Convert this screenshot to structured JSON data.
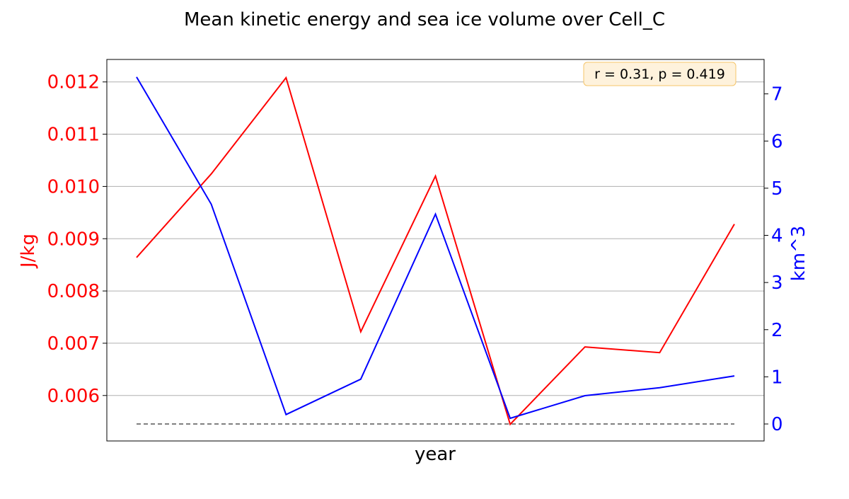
{
  "chart_data": {
    "type": "line",
    "title": "Mean kinetic energy and sea ice volume over Cell_C",
    "xlabel": "year",
    "ylabel_left": "J/kg",
    "ylabel_right": "km^3",
    "x": [
      0,
      1,
      2,
      3,
      4,
      5,
      6,
      7,
      8
    ],
    "ylim_left": [
      0.00513,
      0.01243
    ],
    "ylim_right": [
      -0.36,
      7.73
    ],
    "yticks_left": [
      "0.006",
      "0.007",
      "0.008",
      "0.009",
      "0.010",
      "0.011",
      "0.012"
    ],
    "yticks_right": [
      "0",
      "1",
      "2",
      "3",
      "4",
      "5",
      "6",
      "7"
    ],
    "series": [
      {
        "name": "",
        "axis": "left",
        "color": "#ff0000",
        "values": [
          0.00864,
          0.01024,
          0.01208,
          0.00722,
          0.0102,
          0.00545,
          0.00693,
          0.00682,
          0.00928
        ]
      },
      {
        "name": "",
        "axis": "right",
        "color": "#0000ff",
        "values": [
          7.36,
          4.66,
          0.2,
          0.95,
          4.45,
          0.12,
          0.6,
          0.77,
          1.02
        ]
      }
    ],
    "reference_line": {
      "axis": "right",
      "value": 0,
      "style": "dashed",
      "color": "#808080"
    },
    "grid": "horizontal (left axis)",
    "annotation": {
      "text": "r = 0.31, p = 0.419",
      "placement": "top-right",
      "background": "#fef2dc",
      "border": "#f5c56a"
    },
    "colors": {
      "left_axis": "#ff0000",
      "right_axis": "#0000ff",
      "grid": "#b0b0b0"
    }
  }
}
